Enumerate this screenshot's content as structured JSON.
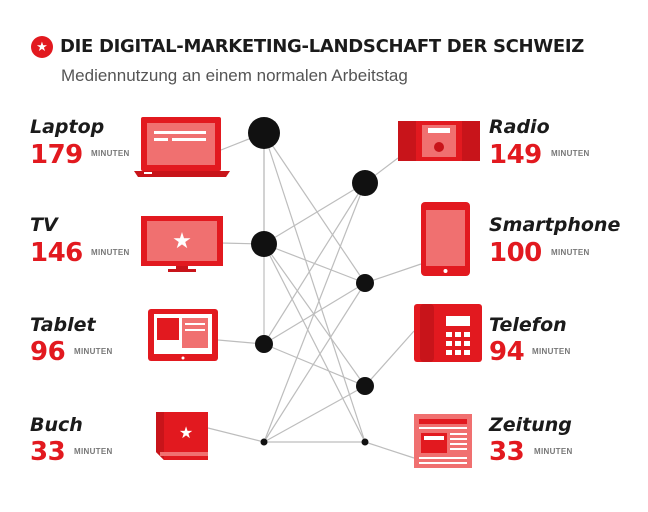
{
  "header": {
    "badge_icon": "star-icon",
    "title": "DIE DIGITAL-MARKETING-LANDSCHAFT DER SCHWEIZ",
    "subtitle": "Mediennutzung an einem normalen Arbeitstag"
  },
  "colors": {
    "accent": "#e2191f",
    "accent_light": "#f07070",
    "text": "#1b1b1b",
    "line": "#bdbdbd"
  },
  "media": {
    "laptop": {
      "name": "Laptop",
      "value": "179",
      "unit": "MINUTEN",
      "icon": "laptop-icon"
    },
    "tv": {
      "name": "TV",
      "value": "146",
      "unit": "MINUTEN",
      "icon": "tv-icon"
    },
    "tablet": {
      "name": "Tablet",
      "value": "96",
      "unit": "MINUTEN",
      "icon": "tablet-icon"
    },
    "buch": {
      "name": "Buch",
      "value": "33",
      "unit": "MINUTEN",
      "icon": "book-icon"
    },
    "radio": {
      "name": "Radio",
      "value": "149",
      "unit": "MINUTEN",
      "icon": "radio-icon"
    },
    "smartphone": {
      "name": "Smartphone",
      "value": "100",
      "unit": "MINUTEN",
      "icon": "smartphone-icon"
    },
    "telefon": {
      "name": "Telefon",
      "value": "94",
      "unit": "MINUTEN",
      "icon": "telephone-icon"
    },
    "zeitung": {
      "name": "Zeitung",
      "value": "33",
      "unit": "MINUTEN",
      "icon": "newspaper-icon"
    }
  }
}
